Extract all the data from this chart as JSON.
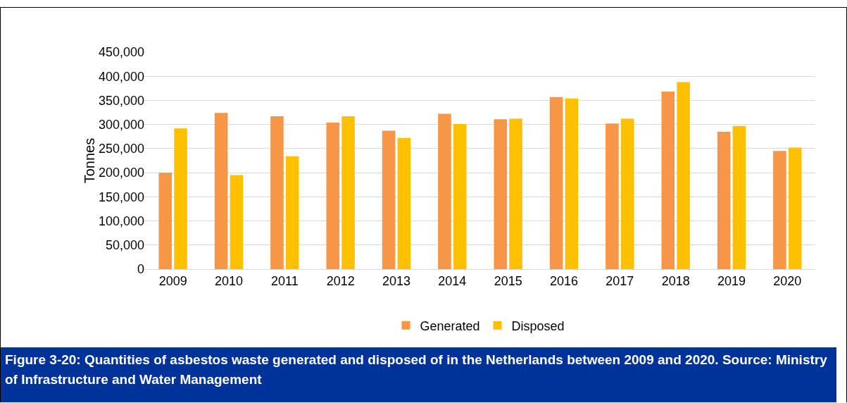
{
  "chart_data": {
    "type": "bar",
    "ylabel": "Tonnes",
    "categories": [
      "2009",
      "2010",
      "2011",
      "2012",
      "2013",
      "2014",
      "2015",
      "2016",
      "2017",
      "2018",
      "2019",
      "2020"
    ],
    "series": [
      {
        "name": "Generated",
        "color": "#f79646",
        "values": [
          200000,
          324000,
          317000,
          304000,
          287000,
          322000,
          311000,
          357000,
          302000,
          368000,
          285000,
          245000
        ]
      },
      {
        "name": "Disposed",
        "color": "#ffc000",
        "values": [
          292000,
          195000,
          234000,
          317000,
          272000,
          301000,
          312000,
          354000,
          312000,
          388000,
          297000,
          252000
        ]
      }
    ],
    "ylim": [
      0,
      450000
    ],
    "yticks": [
      {
        "value": 0,
        "label": "0"
      },
      {
        "value": 50000,
        "label": "50,000"
      },
      {
        "value": 100000,
        "label": "100,000"
      },
      {
        "value": 150000,
        "label": "150,000"
      },
      {
        "value": 200000,
        "label": "200,000"
      },
      {
        "value": 250000,
        "label": "250,000"
      },
      {
        "value": 300000,
        "label": "300,000"
      },
      {
        "value": 350000,
        "label": "350,000"
      },
      {
        "value": 400000,
        "label": "400,000"
      },
      {
        "value": 450000,
        "label": "450,000"
      }
    ],
    "grid": "y",
    "legend": "bottom",
    "annotations": [
      "Figure 3-20: Quantities of asbestos waste generated and disposed of in the Netherlands between 2009 and 2020. Source: Ministry of Infrastructure and Water Management"
    ]
  }
}
